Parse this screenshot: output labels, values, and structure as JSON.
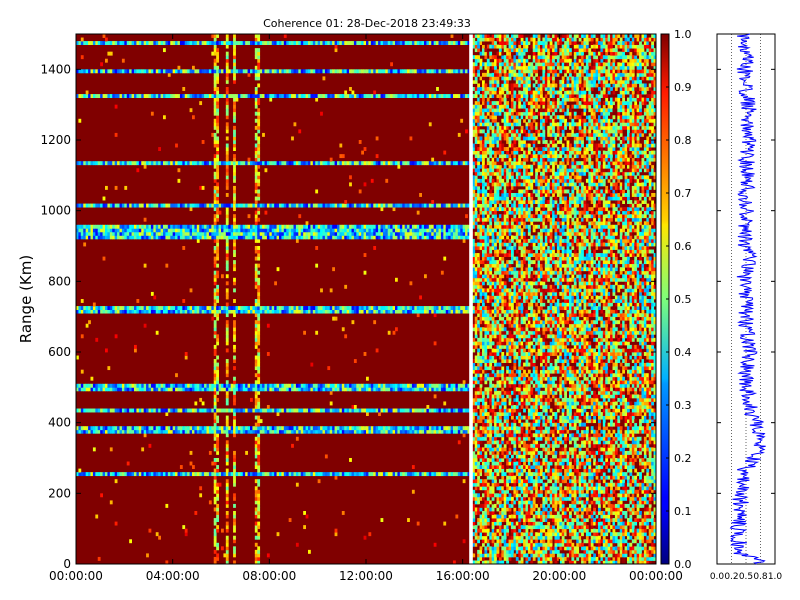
{
  "chart_data": [
    {
      "type": "heatmap",
      "title": "Coherence 01: 28-Dec-2018 23:49:33",
      "xlabel": "",
      "ylabel": "Range (Km)",
      "x_tick_labels": [
        "00:00:00",
        "04:00:00",
        "08:00:00",
        "12:00:00",
        "16:00:00",
        "20:00:00",
        "00:00:00"
      ],
      "x_range_hours": [
        0,
        24
      ],
      "ylim": [
        0,
        1500
      ],
      "y_ticks": [
        0,
        200,
        400,
        600,
        800,
        1000,
        1200,
        1400
      ],
      "colormap": "jet",
      "value_range": [
        0.0,
        1.0
      ],
      "colorbar_ticks": [
        "0.0",
        "0.1",
        "0.2",
        "0.3",
        "0.4",
        "0.5",
        "0.6",
        "0.7",
        "0.8",
        "0.9",
        "1.0"
      ],
      "data_gap_hours": [
        16.27,
        16.42
      ],
      "grid": false,
      "coherence_summary": {
        "background": 1.0,
        "low_coherence_range_bands_km": [
          1475,
          1392,
          1325,
          1135,
          1017,
          950,
          930,
          720,
          505,
          493,
          435,
          380,
          255
        ],
        "low_coherence_time_columns_hours": [
          5.8,
          6.25,
          6.55,
          7.5
        ],
        "noisy_region_hours": [
          16.42,
          24.0
        ],
        "noisy_region_mean": 0.65
      }
    },
    {
      "type": "line",
      "title": "",
      "xlabel": "",
      "ylabel": "",
      "x_tick_labels": [
        "0.0",
        "0.2",
        "0.5",
        "0.8",
        "1.0"
      ],
      "xlim": [
        0,
        1
      ],
      "ylim": [
        0,
        1500
      ],
      "y_ticks": [
        0,
        200,
        400,
        600,
        800,
        1000,
        1200,
        1400
      ],
      "grid": "vertical dotted",
      "line_color": "#0000ff",
      "profile": {
        "range_km": [
          0,
          12,
          30,
          60,
          100,
          150,
          200,
          250,
          265,
          280,
          300,
          320,
          340,
          360,
          380,
          400,
          420,
          450,
          500,
          550,
          600,
          650,
          700,
          750,
          800,
          850,
          900,
          950,
          1000,
          1050,
          1100,
          1150,
          1200,
          1250,
          1300,
          1350,
          1400,
          1450,
          1500
        ],
        "mean_coherence": [
          0.6,
          0.85,
          0.35,
          0.38,
          0.36,
          0.42,
          0.4,
          0.45,
          0.45,
          0.6,
          0.62,
          0.7,
          0.75,
          0.78,
          0.7,
          0.68,
          0.6,
          0.55,
          0.52,
          0.5,
          0.55,
          0.52,
          0.5,
          0.52,
          0.45,
          0.55,
          0.5,
          0.48,
          0.52,
          0.5,
          0.55,
          0.5,
          0.55,
          0.52,
          0.55,
          0.5,
          0.48,
          0.5,
          0.45
        ]
      }
    }
  ]
}
